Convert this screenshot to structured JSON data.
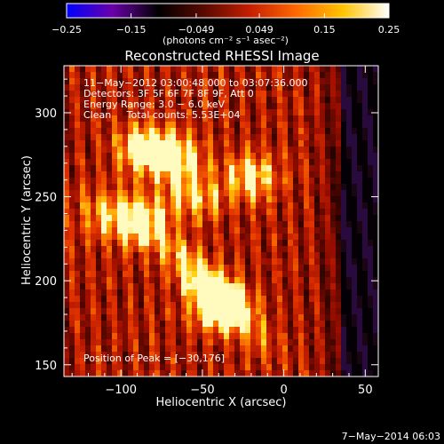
{
  "chart_data": {
    "type": "heatmap",
    "title": "Reconstructed RHESSI Image",
    "xlabel": "Heliocentric X (arcsec)",
    "ylabel": "Heliocentric Y (arcsec)",
    "xlim": [
      -135,
      58
    ],
    "ylim": [
      143,
      328
    ],
    "xticks": [
      -100,
      -50,
      0,
      50
    ],
    "yticks": [
      150,
      200,
      250,
      300
    ],
    "xtick_labels": [
      "−100",
      "−50",
      "0",
      "50"
    ],
    "ytick_labels": [
      "150",
      "200",
      "250",
      "300"
    ],
    "colorbar": {
      "range": [
        -0.25,
        0.25
      ],
      "ticks": [
        -0.25,
        -0.15,
        -0.049,
        0.049,
        0.15,
        0.25
      ],
      "tick_labels": [
        "−0.25",
        "−0.15",
        "−0.049",
        "0.049",
        "0.15",
        "0.25"
      ],
      "unit_label": "(photons cm⁻² s⁻¹ asec⁻²)",
      "colors": [
        "#0000ff",
        "#6a00a8",
        "#000000",
        "#5a0a00",
        "#c81e00",
        "#ff6a00",
        "#ffc400",
        "#ffffff"
      ]
    },
    "annotations": [
      "11−May−2012 03:00:48.000 to 03:07:36.000",
      "Detectors: 3F 5F 6F 7F 8F 9F, Att 0",
      "Energy Range: 3.0 − 6.0 keV",
      "Clean     Total counts: 5.53E+04"
    ],
    "peak_label": "Position of Peak = [−30,176]",
    "peak": [
      -30,
      176
    ],
    "sources": [
      {
        "x": -40,
        "y": 186,
        "intensity": 0.25
      },
      {
        "x": -85,
        "y": 278,
        "intensity": 0.2
      },
      {
        "x": -88,
        "y": 235,
        "intensity": 0.17
      },
      {
        "x": -65,
        "y": 272,
        "intensity": 0.15
      },
      {
        "x": -20,
        "y": 262,
        "intensity": 0.15
      },
      {
        "x": -55,
        "y": 250,
        "intensity": 0.12
      },
      {
        "x": -110,
        "y": 240,
        "intensity": 0.1
      }
    ],
    "footer": "7−May−2014 06:03"
  }
}
